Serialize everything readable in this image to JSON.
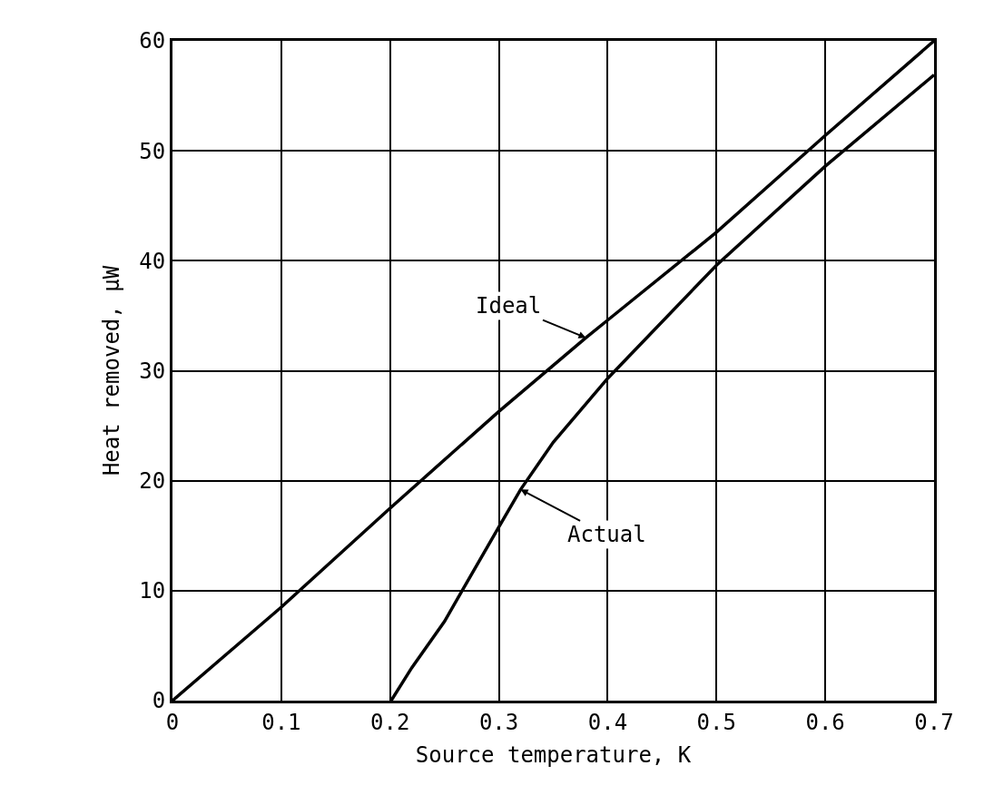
{
  "chart_data": {
    "type": "line",
    "xlabel": "Source temperature, K",
    "ylabel": "Heat removed, μW",
    "xlim": [
      0,
      0.7
    ],
    "xticks": [
      0,
      0.1,
      0.2,
      0.3,
      0.4,
      0.5,
      0.6,
      0.7
    ],
    "ylim": [
      0,
      60
    ],
    "yticks": [
      0,
      10,
      20,
      30,
      40,
      50,
      60
    ],
    "grid": true,
    "line_style": "solid",
    "series": [
      {
        "color": "#000000",
        "x": [
          0,
          0.1,
          0.2,
          0.3,
          0.38,
          0.4,
          0.5,
          0.6,
          0.7
        ],
        "values": [
          0,
          8.5,
          17.5,
          26.3,
          33,
          34.6,
          42.6,
          51.4,
          60
        ]
      },
      {
        "color": "#000000",
        "x": [
          0.201,
          0.22,
          0.25,
          0.3,
          0.32,
          0.35,
          0.4,
          0.5,
          0.6,
          0.7
        ],
        "values": [
          0,
          3,
          7.2,
          15.8,
          19.2,
          23.5,
          29.3,
          39.6,
          48.6,
          56.9
        ]
      }
    ],
    "annotations": [
      {
        "text": "Ideal",
        "x": 0.38,
        "y": 33
      },
      {
        "text": "Actual",
        "x": 0.32,
        "y": 19.2
      }
    ]
  }
}
